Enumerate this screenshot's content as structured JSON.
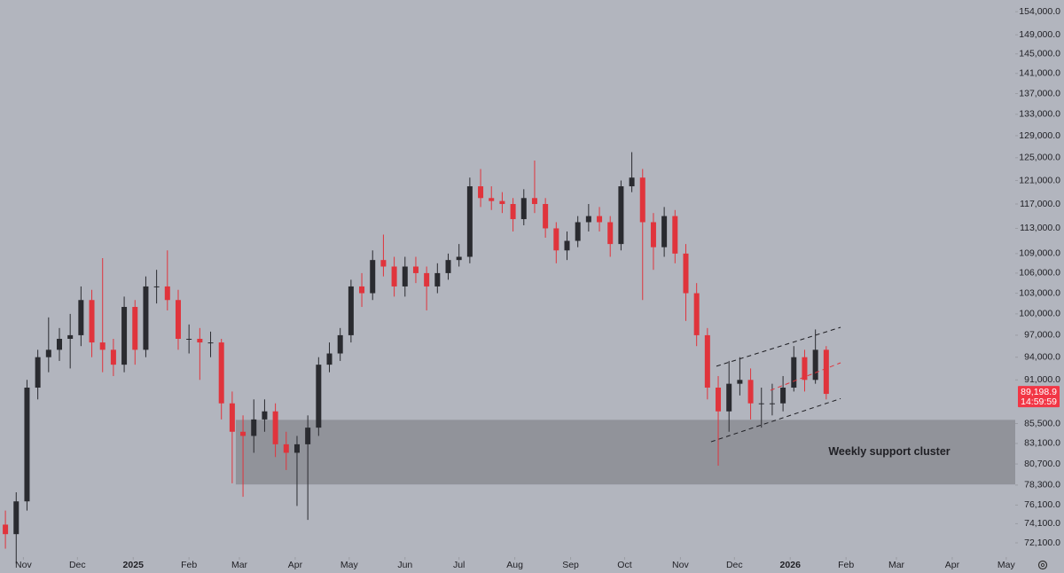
{
  "chart_data": {
    "type": "candlestick",
    "log_scale": true,
    "up_color": "#2a2b30",
    "down_color": "#e0343c",
    "xlim": [
      -13,
      551
    ],
    "ylim": [
      70650,
      156600
    ],
    "x": [
      -10,
      -4,
      2,
      8,
      14,
      20,
      26,
      32,
      38,
      44,
      50,
      56,
      62,
      68,
      74,
      80,
      86,
      92,
      98,
      104,
      110,
      116,
      122,
      128,
      134,
      140,
      146,
      152,
      158,
      164,
      170,
      176,
      182,
      188,
      194,
      200,
      206,
      212,
      218,
      224,
      230,
      236,
      242,
      248,
      254,
      260,
      266,
      272,
      278,
      284,
      290,
      296,
      302,
      308,
      314,
      320,
      326,
      332,
      338,
      344,
      350,
      356,
      362,
      368,
      374,
      380,
      386,
      392,
      398,
      404,
      410,
      416,
      422,
      428,
      434,
      440,
      446
    ],
    "open": [
      74000,
      73000,
      76500,
      90000,
      94000,
      95000,
      96500,
      97000,
      102000,
      96000,
      95000,
      93000,
      101000,
      95000,
      104000,
      104000,
      102000,
      96500,
      96500,
      96000,
      96000,
      88000,
      84500,
      84000,
      86000,
      87000,
      83000,
      82000,
      83000,
      85000,
      93000,
      94500,
      97000,
      104000,
      103000,
      108000,
      107000,
      104000,
      107000,
      106000,
      104000,
      106000,
      108000,
      108500,
      120000,
      118000,
      117500,
      117000,
      114500,
      118000,
      117000,
      113000,
      109500,
      111000,
      114000,
      115000,
      114000,
      110500,
      120000,
      121500,
      114000,
      110000,
      115000,
      109000,
      103000,
      97000,
      90000,
      87000,
      90500,
      91000,
      88000,
      88000,
      88000,
      90000,
      94000,
      91000,
      95000
    ],
    "high": [
      75500,
      77500,
      91000,
      95000,
      99500,
      98000,
      100000,
      104000,
      103500,
      108300,
      96500,
      102500,
      102000,
      105500,
      106500,
      109500,
      103500,
      98500,
      98000,
      97500,
      96500,
      89500,
      86500,
      88500,
      88500,
      88000,
      84500,
      84000,
      86500,
      94000,
      96000,
      98000,
      105000,
      106000,
      109500,
      112000,
      108500,
      108500,
      108500,
      107000,
      107500,
      109000,
      110500,
      121500,
      123000,
      120000,
      119000,
      118000,
      119500,
      124500,
      118000,
      114000,
      112500,
      115000,
      117000,
      116500,
      115000,
      121000,
      126000,
      123000,
      115500,
      116500,
      116000,
      110500,
      104500,
      98000,
      91500,
      93500,
      94000,
      92500,
      90000,
      90500,
      91500,
      95500,
      95000,
      97800,
      95500
    ],
    "low": [
      71500,
      70000,
      75500,
      88500,
      92000,
      93500,
      92500,
      95500,
      94000,
      92000,
      91500,
      92000,
      93000,
      94000,
      101500,
      100500,
      95000,
      94500,
      91000,
      94000,
      86000,
      78500,
      77000,
      82000,
      84500,
      81500,
      80000,
      76000,
      74500,
      84000,
      92000,
      93500,
      96000,
      101000,
      102000,
      105500,
      102500,
      102500,
      104500,
      100500,
      103000,
      105000,
      107000,
      107500,
      116500,
      116000,
      115500,
      112500,
      113500,
      115500,
      111500,
      107500,
      108000,
      110000,
      112500,
      112500,
      108500,
      109500,
      119000,
      102000,
      106500,
      108500,
      107500,
      99000,
      95500,
      88500,
      80500,
      84500,
      89000,
      86000,
      85000,
      86500,
      87000,
      89500,
      89500,
      90500,
      88500
    ],
    "close": [
      73000,
      76500,
      90000,
      94000,
      95000,
      96500,
      97000,
      102000,
      96000,
      95000,
      93000,
      101000,
      95000,
      104000,
      104000,
      102000,
      96500,
      96500,
      96000,
      96000,
      88000,
      84500,
      84000,
      86000,
      87000,
      83000,
      82000,
      83000,
      85000,
      93000,
      94500,
      97000,
      104000,
      103000,
      108000,
      107000,
      104000,
      107000,
      106000,
      104000,
      106000,
      108000,
      108500,
      120000,
      118000,
      117500,
      117000,
      114500,
      118000,
      117000,
      113000,
      109500,
      111000,
      114000,
      115000,
      114000,
      110500,
      120000,
      121500,
      114000,
      110000,
      115000,
      109000,
      103000,
      97000,
      90000,
      87000,
      90500,
      91000,
      88000,
      88000,
      88000,
      90000,
      94000,
      91000,
      95000,
      89200
    ],
    "yticks": [
      {
        "value": 154000,
        "label": "154,000.0"
      },
      {
        "value": 149000,
        "label": "149,000.0"
      },
      {
        "value": 145000,
        "label": "145,000.0"
      },
      {
        "value": 141000,
        "label": "141,000.0"
      },
      {
        "value": 137000,
        "label": "137,000.0"
      },
      {
        "value": 133000,
        "label": "133,000.0"
      },
      {
        "value": 129000,
        "label": "129,000.0"
      },
      {
        "value": 125000,
        "label": "125,000.0"
      },
      {
        "value": 121000,
        "label": "121,000.0"
      },
      {
        "value": 117000,
        "label": "117,000.0"
      },
      {
        "value": 113000,
        "label": "113,000.0"
      },
      {
        "value": 109000,
        "label": "109,000.0"
      },
      {
        "value": 106000,
        "label": "106,000.0"
      },
      {
        "value": 103000,
        "label": "103,000.0"
      },
      {
        "value": 100000,
        "label": "100,000.0"
      },
      {
        "value": 97000,
        "label": "97,000.0"
      },
      {
        "value": 94000,
        "label": "94,000.0"
      },
      {
        "value": 91000,
        "label": "91,000.0"
      },
      {
        "value": 85500,
        "label": "85,500.0"
      },
      {
        "value": 83100,
        "label": "83,100.0"
      },
      {
        "value": 80700,
        "label": "80,700.0"
      },
      {
        "value": 78300,
        "label": "78,300.0"
      },
      {
        "value": 76100,
        "label": "76,100.0"
      },
      {
        "value": 74100,
        "label": "74,100.0"
      },
      {
        "value": 72100,
        "label": "72,100.0"
      }
    ],
    "xticks": [
      {
        "value": 0,
        "label": "Nov"
      },
      {
        "value": 30,
        "label": "Dec"
      },
      {
        "value": 61,
        "label": "2025"
      },
      {
        "value": 92,
        "label": "Feb"
      },
      {
        "value": 120,
        "label": "Mar"
      },
      {
        "value": 151,
        "label": "Apr"
      },
      {
        "value": 181,
        "label": "May"
      },
      {
        "value": 212,
        "label": "Jun"
      },
      {
        "value": 242,
        "label": "Jul"
      },
      {
        "value": 273,
        "label": "Aug"
      },
      {
        "value": 304,
        "label": "Sep"
      },
      {
        "value": 334,
        "label": "Oct"
      },
      {
        "value": 365,
        "label": "Nov"
      },
      {
        "value": 395,
        "label": "Dec"
      },
      {
        "value": 426,
        "label": "2026"
      },
      {
        "value": 457,
        "label": "Feb"
      },
      {
        "value": 485,
        "label": "Mar"
      },
      {
        "value": 516,
        "label": "Apr"
      },
      {
        "value": 546,
        "label": "May"
      }
    ],
    "zone": {
      "label": "Weekly support cluster",
      "x_start": 118,
      "ylim": [
        78370,
        85950
      ],
      "color": "#8b8d94"
    },
    "channel": [
      {
        "x": [
          382,
          454
        ],
        "y": [
          83300,
          88600
        ],
        "color": "#1f1f24"
      },
      {
        "x": [
          385,
          454
        ],
        "y": [
          92800,
          98100
        ],
        "color": "#1f1f24"
      },
      {
        "x": [
          415,
          454
        ],
        "y": [
          89650,
          93250
        ],
        "color": "#e0343c"
      }
    ],
    "last_price": {
      "value": 89198.9,
      "label": "89,198.9"
    },
    "countdown": "14:59:59",
    "last_color": "#f23645"
  }
}
